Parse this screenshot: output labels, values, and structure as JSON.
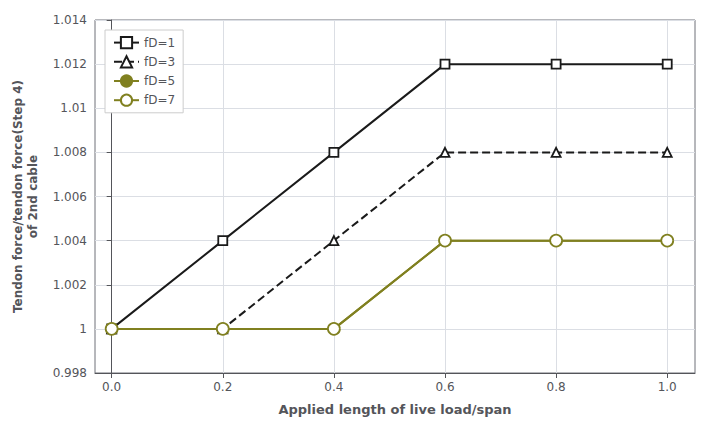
{
  "chart_data": {
    "type": "line",
    "xlabel": "Applied length of live load/span",
    "ylabel": "Tendon force/tendon force(Step 4)\nof 2nd cable",
    "x": [
      0,
      0.2,
      0.4,
      0.6,
      0.8,
      1.0
    ],
    "series": [
      {
        "name": "fD=1",
        "color": "#1a1a1a",
        "marker": "square-open",
        "line_style": "solid",
        "values": [
          1.0,
          1.004,
          1.008,
          1.012,
          1.012,
          1.012
        ]
      },
      {
        "name": "fD=3",
        "color": "#1a1a1a",
        "marker": "triangle-open",
        "line_style": "dashed",
        "values": [
          1.0,
          1.0,
          1.004,
          1.008,
          1.008,
          1.008
        ]
      },
      {
        "name": "fD=5",
        "color": "#808020",
        "marker": "circle",
        "line_style": "solid",
        "values": [
          1.0,
          1.0,
          1.0,
          1.004,
          1.004,
          1.004
        ]
      },
      {
        "name": "fD=7",
        "color": "#808020",
        "marker": "circle-open",
        "line_style": "solid",
        "values": [
          1.0,
          1.0,
          1.0,
          1.004,
          1.004,
          1.004
        ]
      }
    ],
    "xlim": [
      -0.03,
      1.05
    ],
    "xticks": [
      {
        "value": 0,
        "label": "0.0"
      },
      0.2,
      0.4,
      0.6,
      0.8,
      {
        "value": 1,
        "label": "1.0"
      }
    ],
    "ylim": [
      0.998,
      1.014
    ],
    "yticks": [
      0.998,
      1,
      1.002,
      1.004,
      1.006,
      1.008,
      1.01,
      1.012,
      1.014
    ],
    "grid": true,
    "legend": "upper left"
  }
}
